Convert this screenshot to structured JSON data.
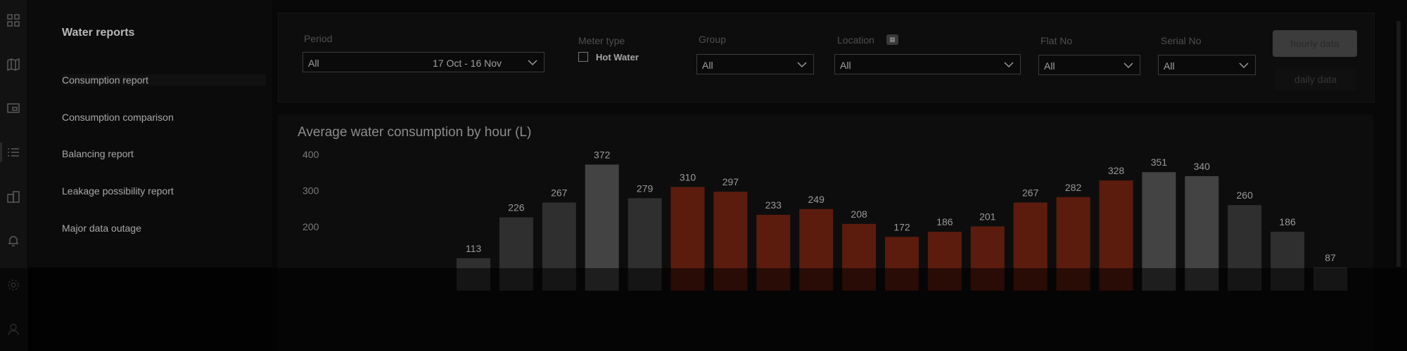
{
  "sidebar": {
    "title": "Water reports",
    "items": [
      {
        "label": "Consumption report"
      },
      {
        "label": "Consumption comparison"
      },
      {
        "label": "Balancing report"
      },
      {
        "label": "Leakage possibility report"
      },
      {
        "label": "Major data outage"
      }
    ]
  },
  "rail_icons": [
    "dashboard-icon",
    "map-icon",
    "monitor-icon",
    "list-icon",
    "building-icon",
    "bell-icon",
    "settings-icon",
    "user-icon"
  ],
  "filters": {
    "period": {
      "label": "Period",
      "value": "All",
      "range": "17 Oct - 16 Nov"
    },
    "meter_type": {
      "label": "Meter type",
      "option": "Hot Water"
    },
    "group": {
      "label": "Group",
      "value": "All"
    },
    "location": {
      "label": "Location",
      "value": "All"
    },
    "flat_no": {
      "label": "Flat No",
      "value": "All"
    },
    "serial_no": {
      "label": "Serial No",
      "value": "All"
    }
  },
  "buttons": {
    "hourly": "hourly data",
    "daily": "daily data"
  },
  "chart_data": {
    "type": "bar",
    "title": "Average water consumption by hour (L)",
    "y_ticks": [
      "400",
      "300",
      "200"
    ],
    "values": [
      113,
      226,
      267,
      372,
      279,
      310,
      297,
      233,
      249,
      208,
      172,
      186,
      201,
      267,
      282,
      328,
      351,
      340,
      260,
      186,
      87
    ],
    "peak_flags": [
      false,
      false,
      false,
      false,
      false,
      true,
      true,
      true,
      true,
      true,
      true,
      true,
      true,
      true,
      true,
      true,
      false,
      false,
      false,
      false,
      false
    ],
    "colors": {
      "normal": "#2f2f2f",
      "peak": "#5c1c0d",
      "top": "#434343"
    }
  }
}
